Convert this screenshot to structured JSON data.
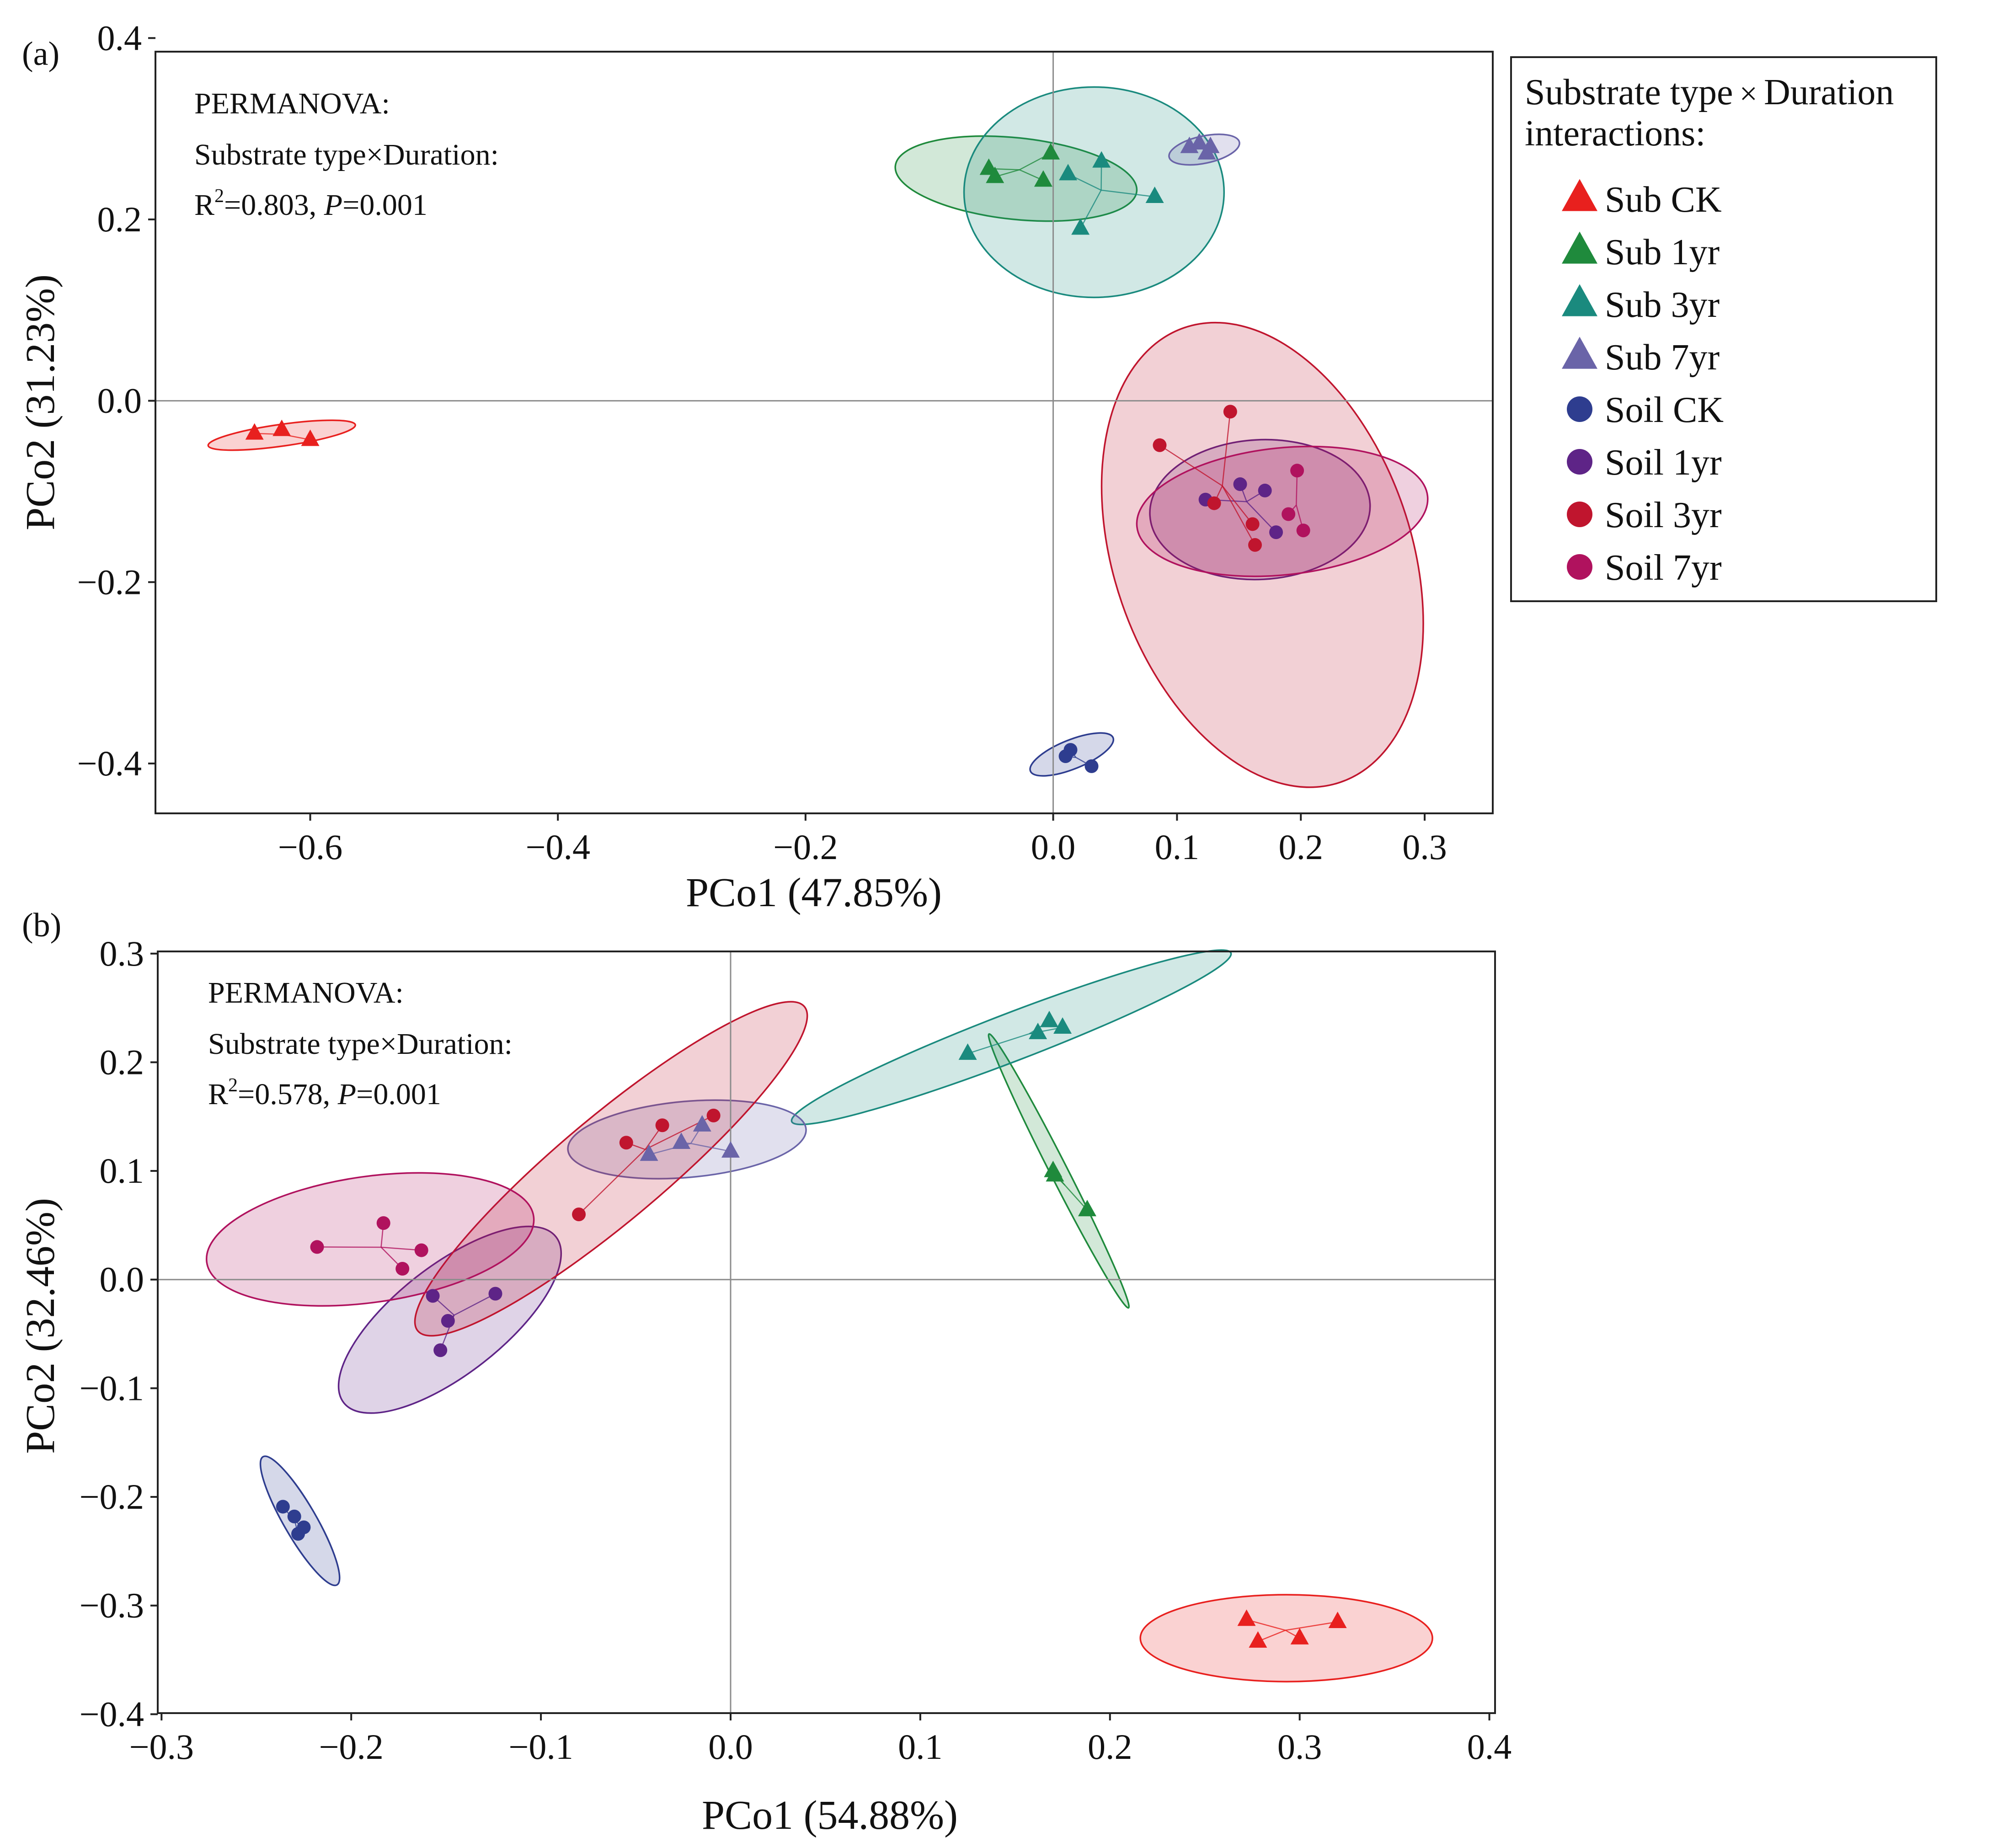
{
  "legend": {
    "title_line1": "Substrate type",
    "title_times": "×",
    "title_line1b": "Duration",
    "title_line2": "interactions:",
    "entries": [
      {
        "label": "Sub CK",
        "marker": "triangle",
        "color": "#e8201e"
      },
      {
        "label": "Sub 1yr",
        "marker": "triangle",
        "color": "#1f8a3c"
      },
      {
        "label": "Sub 3yr",
        "marker": "triangle",
        "color": "#1a8a7e"
      },
      {
        "label": "Sub 7yr",
        "marker": "triangle",
        "color": "#6a64a8"
      },
      {
        "label": "Soil CK",
        "marker": "circle",
        "color": "#2e3d8f"
      },
      {
        "label": "Soil 1yr",
        "marker": "circle",
        "color": "#5e2487"
      },
      {
        "label": "Soil 3yr",
        "marker": "circle",
        "color": "#c0152e"
      },
      {
        "label": "Soil 7yr",
        "marker": "circle",
        "color": "#b0125e"
      }
    ]
  },
  "chart_data": [
    {
      "type": "scatter",
      "panel_label": "(a)",
      "xlabel": "PCo1 (47.85%)",
      "ylabel": "PCo2 (31.23%)",
      "xlim": [
        -0.725,
        0.355
      ],
      "ylim": [
        -0.455,
        0.385
      ],
      "xticks": [
        -0.6,
        -0.4,
        -0.2,
        0.0,
        0.1,
        0.2,
        0.3
      ],
      "xtick_labels": [
        "−0.6",
        "−0.4",
        "−0.2",
        "0.0",
        "0.1",
        "0.2",
        "0.3"
      ],
      "yticks": [
        0.4,
        0.2,
        0.0,
        -0.2,
        -0.4
      ],
      "ytick_labels": [
        "0.4",
        "0.2",
        "0.0",
        "−0.2",
        "−0.4"
      ],
      "annotation": {
        "line1": "PERMANOVA:",
        "line2a": "Substrate type",
        "line2x": "×",
        "line2b": "Duration:",
        "r_label": "R",
        "r_sup": "2",
        "r_value": "=0.803, ",
        "p_label": "P",
        "p_value": "=0.001"
      },
      "ellipses": [
        {
          "group": "Sub CK",
          "cx": -0.623,
          "cy": -0.038,
          "rx": 0.06,
          "ry": 0.012,
          "angle": -8
        },
        {
          "group": "Sub 1yr",
          "cx": -0.03,
          "cy": 0.245,
          "rx": 0.098,
          "ry": 0.045,
          "angle": 6
        },
        {
          "group": "Sub 3yr",
          "cx": 0.033,
          "cy": 0.23,
          "rx": 0.105,
          "ry": 0.116,
          "angle": 0
        },
        {
          "group": "Sub 7yr",
          "cx": 0.122,
          "cy": 0.277,
          "rx": 0.029,
          "ry": 0.015,
          "angle": -12
        },
        {
          "group": "Soil CK",
          "cx": 0.015,
          "cy": -0.39,
          "rx": 0.036,
          "ry": 0.016,
          "angle": -22
        },
        {
          "group": "Soil 1yr",
          "cx": 0.167,
          "cy": -0.12,
          "rx": 0.089,
          "ry": 0.077,
          "angle": -3
        },
        {
          "group": "Soil 3yr",
          "cx": 0.169,
          "cy": -0.17,
          "rx": 0.12,
          "ry": 0.265,
          "angle": -19
        },
        {
          "group": "Soil 7yr",
          "cx": 0.185,
          "cy": -0.122,
          "rx": 0.118,
          "ry": 0.07,
          "angle": -6
        }
      ],
      "series": [
        {
          "name": "Sub CK",
          "x": [
            -0.645,
            -0.623,
            -0.6
          ],
          "y": [
            -0.036,
            -0.032,
            -0.043
          ]
        },
        {
          "name": "Sub 1yr",
          "x": [
            -0.052,
            -0.047,
            -0.008,
            -0.002
          ],
          "y": [
            0.256,
            0.247,
            0.243,
            0.273
          ]
        },
        {
          "name": "Sub 3yr",
          "x": [
            0.012,
            0.039,
            0.082,
            0.022
          ],
          "y": [
            0.25,
            0.264,
            0.225,
            0.19
          ]
        },
        {
          "name": "Sub 7yr",
          "x": [
            0.11,
            0.118,
            0.127,
            0.124
          ],
          "y": [
            0.28,
            0.284,
            0.28,
            0.273
          ]
        },
        {
          "name": "Soil CK",
          "x": [
            0.01,
            0.014,
            0.031
          ],
          "y": [
            -0.392,
            -0.385,
            -0.403
          ]
        },
        {
          "name": "Soil 1yr",
          "x": [
            0.123,
            0.151,
            0.171,
            0.18
          ],
          "y": [
            -0.109,
            -0.092,
            -0.099,
            -0.145
          ]
        },
        {
          "name": "Soil 3yr",
          "x": [
            0.086,
            0.143,
            0.13,
            0.161,
            0.163
          ],
          "y": [
            -0.049,
            -0.012,
            -0.113,
            -0.136,
            -0.159
          ]
        },
        {
          "name": "Soil 7yr",
          "x": [
            0.197,
            0.19,
            0.202
          ],
          "y": [
            -0.077,
            -0.125,
            -0.143
          ]
        }
      ]
    },
    {
      "type": "scatter",
      "panel_label": "(b)",
      "xlabel": "PCo1 (54.88%)",
      "ylabel": "PCo2 (32.46%)",
      "xlim": [
        -0.302,
        0.403
      ],
      "ylim": [
        -0.399,
        0.302
      ],
      "xticks": [
        -0.3,
        -0.2,
        -0.1,
        0.0,
        0.1,
        0.2,
        0.3,
        0.4
      ],
      "xtick_labels": [
        "−0.3",
        "−0.2",
        "−0.1",
        "0.0",
        "0.1",
        "0.2",
        "0.3",
        "0.4"
      ],
      "yticks": [
        0.3,
        0.2,
        0.1,
        0.0,
        -0.1,
        -0.2,
        -0.3,
        -0.4
      ],
      "ytick_labels": [
        "0.3",
        "0.2",
        "0.1",
        "0.0",
        "−0.1",
        "−0.2",
        "−0.3",
        "−0.4"
      ],
      "annotation": {
        "line1": "PERMANOVA:",
        "line2a": "Substrate type",
        "line2x": "×",
        "line2b": "Duration:",
        "r_label": "R",
        "r_sup": "2",
        "r_value": "=0.578, ",
        "p_label": "P",
        "p_value": "=0.001"
      },
      "ellipses": [
        {
          "group": "Sub CK",
          "cx": 0.293,
          "cy": -0.33,
          "rx": 0.077,
          "ry": 0.04,
          "angle": 0
        },
        {
          "group": "Sub 1yr",
          "cx": 0.173,
          "cy": 0.1,
          "rx": 0.081,
          "ry": 0.008,
          "angle": 63
        },
        {
          "group": "Sub 3yr",
          "cx": 0.148,
          "cy": 0.223,
          "rx": 0.124,
          "ry": 0.022,
          "angle": -21
        },
        {
          "group": "Sub 7yr",
          "cx": -0.023,
          "cy": 0.129,
          "rx": 0.063,
          "ry": 0.035,
          "angle": -5
        },
        {
          "group": "Soil CK",
          "cx": -0.227,
          "cy": -0.222,
          "rx": 0.039,
          "ry": 0.015,
          "angle": 60
        },
        {
          "group": "Soil 1yr",
          "cx": -0.148,
          "cy": -0.037,
          "rx": 0.071,
          "ry": 0.05,
          "angle": -38
        },
        {
          "group": "Soil 3yr",
          "cx": -0.063,
          "cy": 0.102,
          "rx": 0.133,
          "ry": 0.048,
          "angle": -40
        },
        {
          "group": "Soil 7yr",
          "cx": -0.19,
          "cy": 0.037,
          "rx": 0.087,
          "ry": 0.058,
          "angle": -8
        }
      ],
      "series": [
        {
          "name": "Sub CK",
          "x": [
            0.272,
            0.278,
            0.3,
            0.32
          ],
          "y": [
            -0.313,
            -0.333,
            -0.33,
            -0.315
          ]
        },
        {
          "name": "Sub 1yr",
          "x": [
            0.17,
            0.171,
            0.188
          ],
          "y": [
            0.1,
            0.096,
            0.064
          ]
        },
        {
          "name": "Sub 3yr",
          "x": [
            0.125,
            0.162,
            0.168,
            0.175
          ],
          "y": [
            0.208,
            0.227,
            0.238,
            0.232
          ]
        },
        {
          "name": "Sub 7yr",
          "x": [
            -0.043,
            -0.026,
            -0.015,
            0.0
          ],
          "y": [
            0.115,
            0.126,
            0.142,
            0.118
          ]
        },
        {
          "name": "Soil CK",
          "x": [
            -0.236,
            -0.23,
            -0.228,
            -0.225
          ],
          "y": [
            -0.209,
            -0.218,
            -0.234,
            -0.228
          ]
        },
        {
          "name": "Soil 1yr",
          "x": [
            -0.157,
            -0.149,
            -0.153,
            -0.124
          ],
          "y": [
            -0.015,
            -0.038,
            -0.065,
            -0.013
          ]
        },
        {
          "name": "Soil 3yr",
          "x": [
            -0.08,
            -0.055,
            -0.036,
            -0.009
          ],
          "y": [
            0.06,
            0.126,
            0.142,
            0.151
          ]
        },
        {
          "name": "Soil 7yr",
          "x": [
            -0.218,
            -0.183,
            -0.163,
            -0.173
          ],
          "y": [
            0.03,
            0.052,
            0.027,
            0.01
          ]
        }
      ]
    }
  ]
}
